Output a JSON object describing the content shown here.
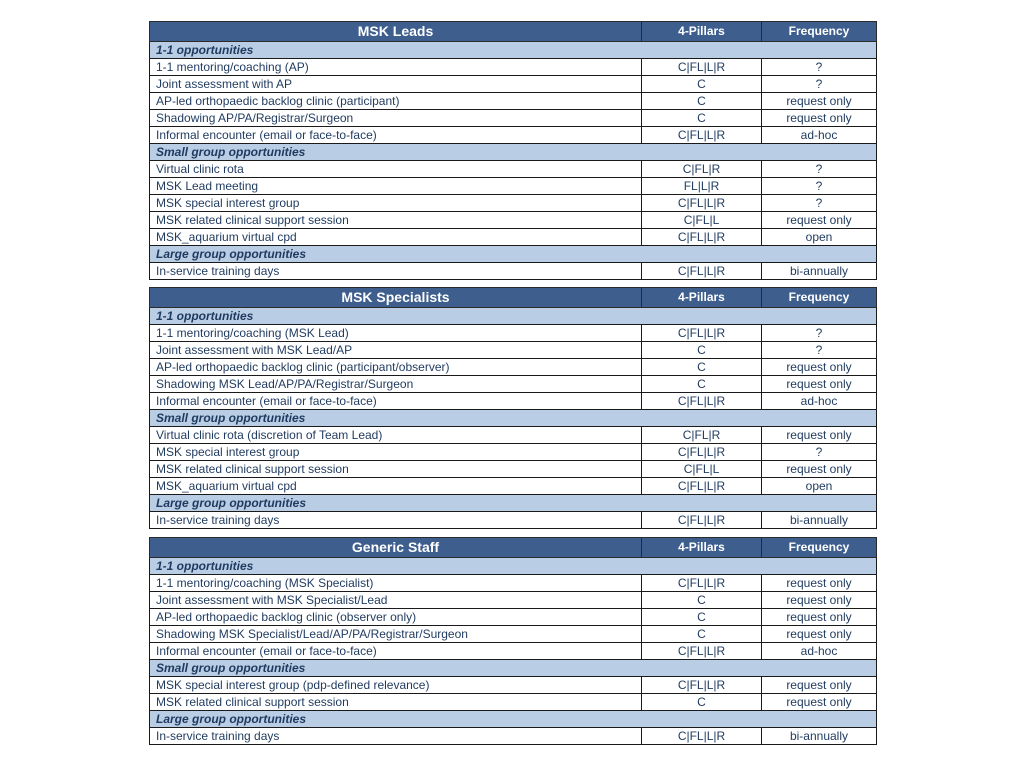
{
  "tables": [
    {
      "title": "MSK Leads",
      "col_pillars": "4-Pillars",
      "col_frequency": "Frequency",
      "groups": [
        {
          "label": "1-1 opportunities",
          "rows": [
            [
              "1-1 mentoring/coaching (AP)",
              "C|FL|L|R",
              "?"
            ],
            [
              "Joint assessment with AP",
              "C",
              "?"
            ],
            [
              "AP-led orthopaedic backlog clinic (participant)",
              "C",
              "request only"
            ],
            [
              "Shadowing AP/PA/Registrar/Surgeon",
              "C",
              "request only"
            ],
            [
              "Informal encounter (email or face-to-face)",
              "C|FL|L|R",
              "ad-hoc"
            ]
          ]
        },
        {
          "label": "Small group opportunities",
          "rows": [
            [
              "Virtual clinic rota",
              "C|FL|R",
              "?"
            ],
            [
              "MSK Lead meeting",
              "FL|L|R",
              "?"
            ],
            [
              "MSK special interest group",
              "C|FL|L|R",
              "?"
            ],
            [
              "MSK related clinical support session",
              "C|FL|L",
              "request only"
            ],
            [
              "MSK_aquarium virtual cpd",
              "C|FL|L|R",
              "open"
            ]
          ]
        },
        {
          "label": "Large group opportunities",
          "rows": [
            [
              "In-service training days",
              "C|FL|L|R",
              "bi-annually"
            ]
          ]
        }
      ]
    },
    {
      "title": "MSK Specialists",
      "col_pillars": "4-Pillars",
      "col_frequency": "Frequency",
      "groups": [
        {
          "label": "1-1 opportunities",
          "rows": [
            [
              "1-1 mentoring/coaching (MSK Lead)",
              "C|FL|L|R",
              "?"
            ],
            [
              "Joint assessment with MSK Lead/AP",
              "C",
              "?"
            ],
            [
              "AP-led orthopaedic backlog clinic (participant/observer)",
              "C",
              "request only"
            ],
            [
              "Shadowing MSK Lead/AP/PA/Registrar/Surgeon",
              "C",
              "request only"
            ],
            [
              "Informal encounter (email or face-to-face)",
              "C|FL|L|R",
              "ad-hoc"
            ]
          ]
        },
        {
          "label": "Small group opportunities",
          "rows": [
            [
              "Virtual clinic rota (discretion of Team Lead)",
              "C|FL|R",
              "request only"
            ],
            [
              "MSK special interest group",
              "C|FL|L|R",
              "?"
            ],
            [
              "MSK related clinical support session",
              "C|FL|L",
              "request only"
            ],
            [
              "MSK_aquarium virtual cpd",
              "C|FL|L|R",
              "open"
            ]
          ]
        },
        {
          "label": "Large group opportunities",
          "rows": [
            [
              "In-service training days",
              "C|FL|L|R",
              "bi-annually"
            ]
          ]
        }
      ]
    },
    {
      "title": "Generic Staff",
      "col_pillars": "4-Pillars",
      "col_frequency": "Frequency",
      "groups": [
        {
          "label": "1-1 opportunities",
          "rows": [
            [
              "1-1 mentoring/coaching (MSK Specialist)",
              "C|FL|L|R",
              "request only"
            ],
            [
              "Joint assessment with MSK Specialist/Lead",
              "C",
              "request only"
            ],
            [
              "AP-led orthopaedic backlog clinic (observer only)",
              "C",
              "request only"
            ],
            [
              "Shadowing MSK Specialist/Lead/AP/PA/Registrar/Surgeon",
              "C",
              "request only"
            ],
            [
              "Informal encounter (email or face-to-face)",
              "C|FL|L|R",
              "ad-hoc"
            ]
          ]
        },
        {
          "label": "Small group opportunities",
          "rows": [
            [
              "MSK special interest group (pdp-defined relevance)",
              "C|FL|L|R",
              "request only"
            ],
            [
              "MSK related clinical support session",
              "C",
              "request only"
            ]
          ]
        },
        {
          "label": "Large group opportunities",
          "rows": [
            [
              "In-service training days",
              "C|FL|L|R",
              "bi-annually"
            ]
          ]
        }
      ]
    }
  ],
  "colors": {
    "header": "#3e5f8e",
    "group": "#b9cde5",
    "text": "#1f3a5f"
  }
}
